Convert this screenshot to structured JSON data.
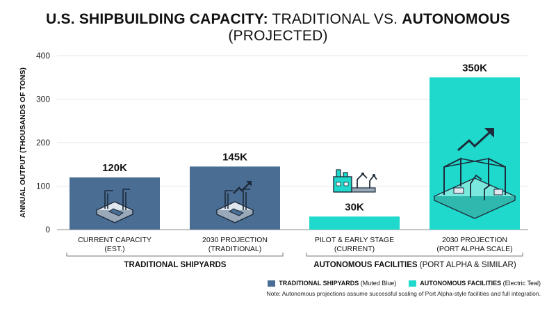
{
  "title": {
    "part1_bold": "U.S. SHIPBUILDING CAPACITY:",
    "part2": " TRADITIONAL VS. ",
    "part3_bold": "AUTONOMOUS",
    "part4": " (PROJECTED)"
  },
  "chart_data": {
    "type": "bar",
    "ylabel": "ANNUAL OUTPUT (THOUSANDS OF TONS)",
    "ylim": [
      0,
      400
    ],
    "yticks": [
      "0",
      "100",
      "200",
      "300",
      "400"
    ],
    "ytick_values": [
      0,
      100,
      200,
      300,
      400
    ],
    "grid": true,
    "categories": [
      [
        "CURRENT CAPACITY",
        "(EST.)"
      ],
      [
        "2030 PROJECTION",
        "(TRADITIONAL)"
      ],
      [
        "PILOT & EARLY STAGE",
        "(CURRENT)"
      ],
      [
        "2030 PROJECTION",
        "(PORT ALPHA SCALE)"
      ]
    ],
    "values": [
      120,
      145,
      30,
      350
    ],
    "data_labels": [
      "120K",
      "145K",
      "30K",
      "350K"
    ],
    "bar_colors": [
      "#4a6d94",
      "#4a6d94",
      "#1fd9cc",
      "#1fd9cc"
    ],
    "groups": [
      {
        "label_bold": "TRADITIONAL SHIPYARDS",
        "label_rest": "",
        "bars": [
          0,
          1
        ]
      },
      {
        "label_bold": "AUTONOMOUS FACILITIES",
        "label_rest": " (PORT ALPHA & SIMILAR)",
        "bars": [
          2,
          3
        ]
      }
    ],
    "legend": [
      {
        "bold": "TRADITIONAL SHIPYARDS",
        "rest": " (Muted Blue)",
        "color": "#4a6d94"
      },
      {
        "bold": "AUTONOMOUS FACILITIES",
        "rest": " (Electric Teal)",
        "color": "#1fd9cc"
      }
    ],
    "legend_position": "bottom-right",
    "note": "Note: Autonomous projections assume successful scaling of Port Alpha-style facilities and full integration."
  }
}
